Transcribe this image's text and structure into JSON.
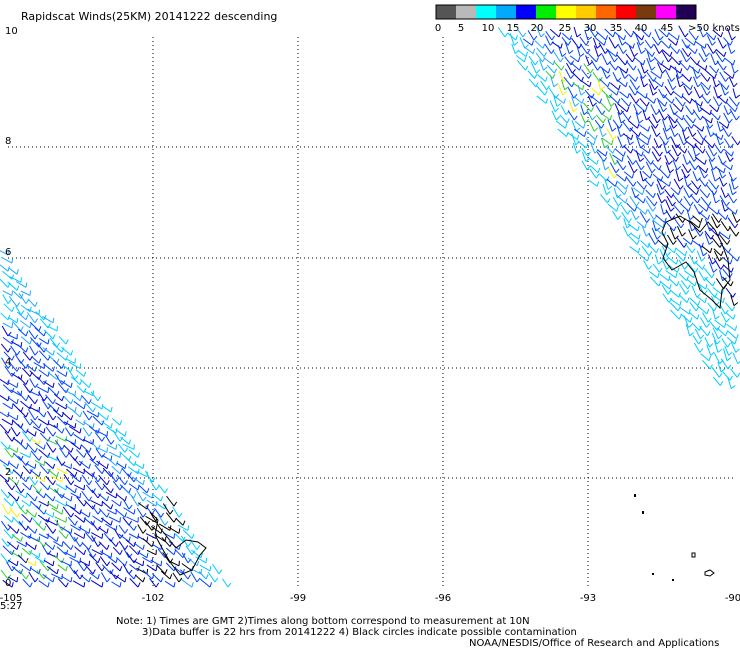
{
  "title": "Rapidscat Winds(25KM) 20141222 descending",
  "legend": {
    "ticks": [
      "0",
      "5",
      "10",
      "15",
      "20",
      "25",
      "30",
      "35",
      "40",
      "45",
      ">50 knots"
    ],
    "colors": [
      "#555555",
      "#b9b9b9",
      "#00ffff",
      "#00aaff",
      "#0000ff",
      "#00ee00",
      "#ffff00",
      "#ffcc00",
      "#ff6600",
      "#ff0000",
      "#7a3a10",
      "#ff00ff",
      "#220055"
    ]
  },
  "axes": {
    "x_ticks": [
      "-105",
      "-102",
      "-99",
      "-96",
      "-93",
      "-90"
    ],
    "y_ticks": [
      "0",
      "2",
      "4",
      "6",
      "8",
      "10"
    ],
    "time_label": "5:27"
  },
  "notes": {
    "line1": "Note: 1) Times are GMT 2)Times along bottom correspond to measurement at 10N",
    "line2": "3)Data buffer is 22 hrs from 20141222 4) Black circles indicate possible contamination",
    "line3": "NOAA/NESDIS/Office of Research and Applications"
  },
  "map": {
    "x_range": [
      -105,
      -90
    ],
    "y_range": [
      0,
      10
    ],
    "grid": "dotted",
    "swaths": [
      "upper-right",
      "lower-left"
    ],
    "land_color": "#000000"
  }
}
